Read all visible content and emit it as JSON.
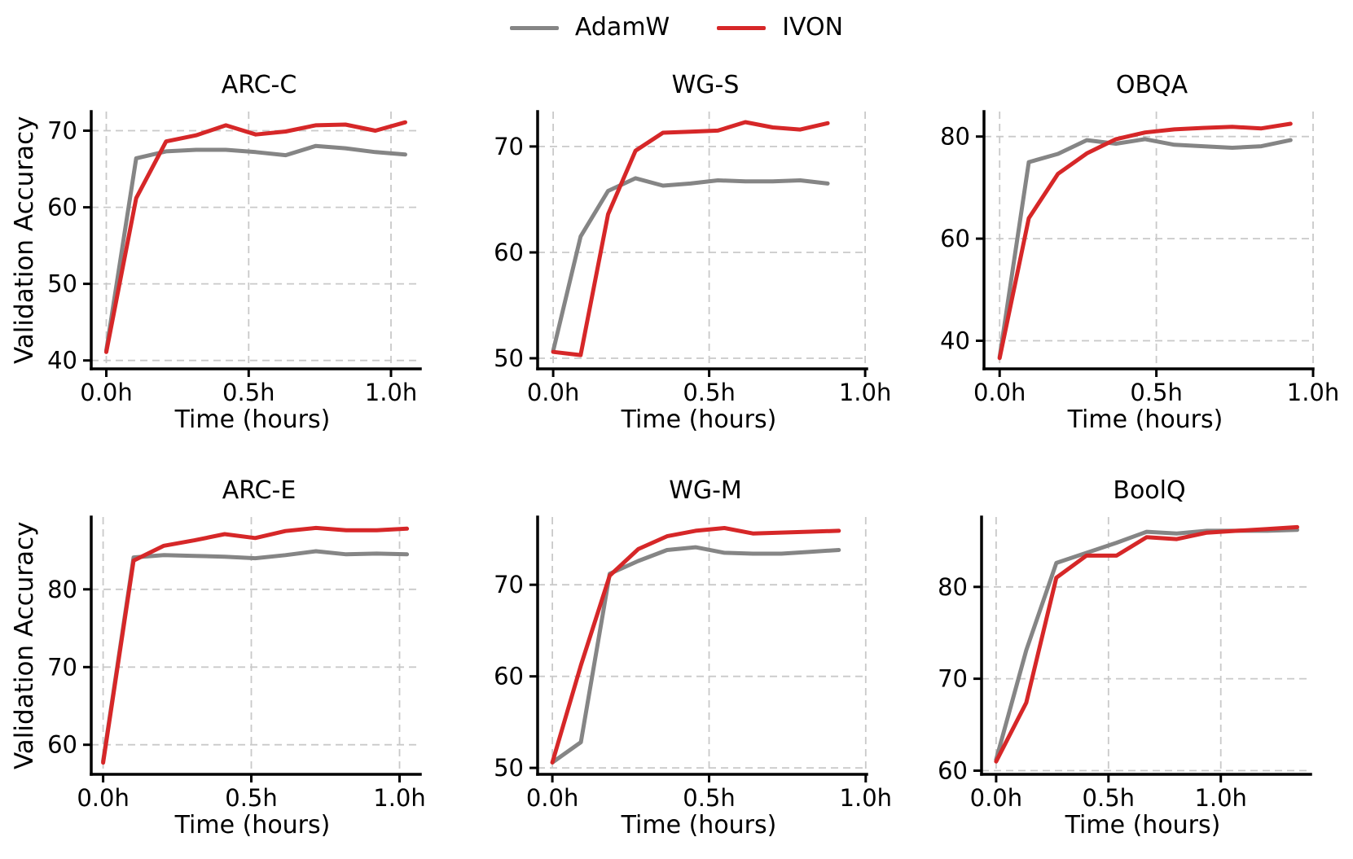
{
  "legend": {
    "items": [
      {
        "label": "AdamW",
        "color": "#858585"
      },
      {
        "label": "IVON",
        "color": "#d62728"
      }
    ]
  },
  "shared": {
    "ylabel": "Validation Accuracy",
    "xlabel": "Time (hours)"
  },
  "chart_data": [
    {
      "type": "line",
      "title": "ARC-C",
      "xlabel": "Time (hours)",
      "ylabel": "Validation Accuracy",
      "x": [
        0,
        0.105,
        0.21,
        0.315,
        0.42,
        0.525,
        0.63,
        0.735,
        0.84,
        0.945,
        1.05
      ],
      "series": [
        {
          "name": "AdamW",
          "color": "#858585",
          "values": [
            41.3,
            66.4,
            67.3,
            67.5,
            67.5,
            67.2,
            66.8,
            68.0,
            67.7,
            67.2,
            66.9
          ]
        },
        {
          "name": "IVON",
          "color": "#d62728",
          "values": [
            41.1,
            61.2,
            68.6,
            69.4,
            70.7,
            69.5,
            69.9,
            70.7,
            70.8,
            70.0,
            71.1
          ]
        }
      ],
      "xticks": [
        {
          "value": 0.0,
          "label": "0.0h"
        },
        {
          "value": 0.5,
          "label": "0.5h"
        },
        {
          "value": 1.0,
          "label": "1.0h"
        }
      ],
      "yticks": [
        40,
        50,
        60,
        70
      ],
      "xlim": [
        -0.053,
        1.103
      ],
      "ylim": [
        38.9,
        72.5
      ],
      "grid": true,
      "legend_position": "figure-top"
    },
    {
      "type": "line",
      "title": "WG-S",
      "xlabel": "Time (hours)",
      "ylabel": "",
      "x": [
        0,
        0.088,
        0.176,
        0.264,
        0.352,
        0.44,
        0.528,
        0.616,
        0.704,
        0.792,
        0.88
      ],
      "series": [
        {
          "name": "AdamW",
          "color": "#858585",
          "values": [
            50.7,
            61.5,
            65.8,
            67.0,
            66.3,
            66.5,
            66.8,
            66.7,
            66.7,
            66.8,
            66.5
          ]
        },
        {
          "name": "IVON",
          "color": "#d62728",
          "values": [
            50.6,
            50.3,
            63.6,
            69.6,
            71.3,
            71.4,
            71.5,
            72.3,
            71.8,
            71.6,
            72.2
          ]
        }
      ],
      "xticks": [
        {
          "value": 0.0,
          "label": "0.0h"
        },
        {
          "value": 0.5,
          "label": "0.5h"
        },
        {
          "value": 1.0,
          "label": "1.0h"
        }
      ],
      "yticks": [
        50,
        60,
        70
      ],
      "xlim": [
        -0.05,
        1.005
      ],
      "ylim": [
        49.0,
        73.3
      ],
      "grid": true,
      "legend_position": "figure-top"
    },
    {
      "type": "line",
      "title": "OBQA",
      "xlabel": "Time (hours)",
      "ylabel": "",
      "x": [
        0,
        0.093,
        0.186,
        0.278,
        0.371,
        0.464,
        0.557,
        0.649,
        0.742,
        0.835,
        0.928
      ],
      "series": [
        {
          "name": "AdamW",
          "color": "#858585",
          "values": [
            36.8,
            75.0,
            76.6,
            79.3,
            78.6,
            79.5,
            78.4,
            78.1,
            77.8,
            78.1,
            79.3
          ]
        },
        {
          "name": "IVON",
          "color": "#d62728",
          "values": [
            36.6,
            64.0,
            72.7,
            76.7,
            79.5,
            80.8,
            81.4,
            81.7,
            81.9,
            81.6,
            82.5
          ]
        }
      ],
      "xticks": [
        {
          "value": 0.0,
          "label": "0.0h"
        },
        {
          "value": 0.5,
          "label": "0.5h"
        },
        {
          "value": 1.0,
          "label": "1.0h"
        }
      ],
      "yticks": [
        40,
        60,
        80
      ],
      "xlim": [
        -0.05,
        1.0
      ],
      "ylim": [
        34.5,
        84.9
      ],
      "grid": true,
      "legend_position": "figure-top"
    },
    {
      "type": "line",
      "title": "ARC-E",
      "xlabel": "Time (hours)",
      "ylabel": "Validation Accuracy",
      "x": [
        0,
        0.103,
        0.205,
        0.308,
        0.41,
        0.513,
        0.615,
        0.718,
        0.82,
        0.923,
        1.025
      ],
      "series": [
        {
          "name": "AdamW",
          "color": "#858585",
          "values": [
            57.9,
            84.1,
            84.4,
            84.3,
            84.2,
            84.0,
            84.4,
            84.9,
            84.5,
            84.6,
            84.5
          ]
        },
        {
          "name": "IVON",
          "color": "#d62728",
          "values": [
            57.7,
            83.7,
            85.6,
            86.3,
            87.1,
            86.6,
            87.5,
            87.9,
            87.6,
            87.6,
            87.8
          ]
        }
      ],
      "xticks": [
        {
          "value": 0.0,
          "label": "0.0h"
        },
        {
          "value": 0.5,
          "label": "0.5h"
        },
        {
          "value": 1.0,
          "label": "1.0h"
        }
      ],
      "yticks": [
        60,
        70,
        80
      ],
      "xlim": [
        -0.04,
        1.07
      ],
      "ylim": [
        56.2,
        89.3
      ],
      "grid": true,
      "legend_position": "figure-top"
    },
    {
      "type": "line",
      "title": "WG-M",
      "xlabel": "Time (hours)",
      "ylabel": "",
      "x": [
        0,
        0.091,
        0.183,
        0.274,
        0.366,
        0.457,
        0.549,
        0.64,
        0.731,
        0.823,
        0.914
      ],
      "series": [
        {
          "name": "AdamW",
          "color": "#858585",
          "values": [
            50.6,
            52.8,
            71.2,
            72.6,
            73.8,
            74.1,
            73.5,
            73.4,
            73.4,
            73.6,
            73.8
          ]
        },
        {
          "name": "IVON",
          "color": "#d62728",
          "values": [
            50.6,
            61.2,
            71.0,
            73.9,
            75.3,
            75.9,
            76.2,
            75.6,
            75.7,
            75.8,
            75.9
          ]
        }
      ],
      "xticks": [
        {
          "value": 0.0,
          "label": "0.0h"
        },
        {
          "value": 0.5,
          "label": "0.5h"
        },
        {
          "value": 1.0,
          "label": "1.0h"
        }
      ],
      "yticks": [
        50,
        60,
        70
      ],
      "xlim": [
        -0.047,
        1.003
      ],
      "ylim": [
        49.3,
        77.4
      ],
      "grid": true,
      "legend_position": "figure-top"
    },
    {
      "type": "line",
      "title": "BoolQ",
      "xlabel": "Time (hours)",
      "ylabel": "",
      "x": [
        0,
        0.134,
        0.268,
        0.402,
        0.536,
        0.67,
        0.804,
        0.938,
        1.072,
        1.206,
        1.34
      ],
      "series": [
        {
          "name": "AdamW",
          "color": "#858585",
          "values": [
            61.2,
            73.1,
            82.6,
            83.7,
            84.8,
            86.0,
            85.8,
            86.1,
            86.1,
            86.1,
            86.2
          ]
        },
        {
          "name": "IVON",
          "color": "#d62728",
          "values": [
            61.0,
            67.4,
            81.0,
            83.4,
            83.4,
            85.4,
            85.2,
            85.9,
            86.1,
            86.3,
            86.5
          ]
        }
      ],
      "xticks": [
        {
          "value": 0.0,
          "label": "0.0h"
        },
        {
          "value": 0.5,
          "label": "0.5h"
        },
        {
          "value": 1.0,
          "label": "1.0h"
        }
      ],
      "yticks": [
        60,
        70,
        80
      ],
      "xlim": [
        -0.065,
        1.4
      ],
      "ylim": [
        59.6,
        87.6
      ],
      "grid": true,
      "legend_position": "figure-top"
    }
  ]
}
